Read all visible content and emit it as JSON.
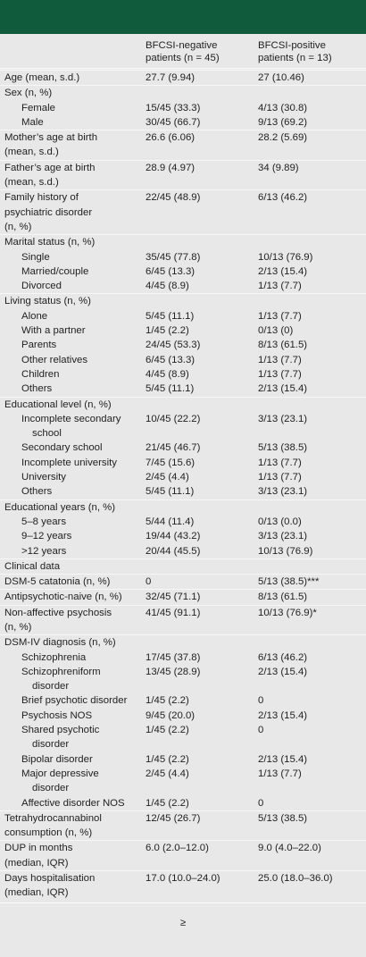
{
  "table": {
    "columns": [
      "BFCSI-negative\npatients (n = 45)",
      "BFCSI-positive\npatients (n = 13)"
    ],
    "rows": [
      {
        "label": "Age (mean, s.d.)",
        "level": 0,
        "negative": "27.7 (9.94)",
        "positive": "27 (10.46)"
      },
      {
        "label": "Sex (n, %)",
        "level": 0
      },
      {
        "label": "Female",
        "level": 1,
        "negative": "15/45 (33.3)",
        "positive": "4/13 (30.8)"
      },
      {
        "label": "Male",
        "level": 1,
        "negative": "30/45 (66.7)",
        "positive": "9/13 (69.2)"
      },
      {
        "label": "Mother’s age at birth\n(mean, s.d.)",
        "level": 0,
        "negative": "26.6 (6.06)",
        "positive": "28.2 (5.69)"
      },
      {
        "label": "Father’s age at birth\n(mean, s.d.)",
        "level": 0,
        "negative": "28.9 (4.97)",
        "positive": "34 (9.89)"
      },
      {
        "label": "Family history of\npsychiatric disorder\n(n, %)",
        "level": 0,
        "negative": "22/45 (48.9)",
        "positive": "6/13 (46.2)"
      },
      {
        "label": "Marital status (n, %)",
        "level": 0
      },
      {
        "label": "Single",
        "level": 1,
        "negative": "35/45 (77.8)",
        "positive": "10/13 (76.9)"
      },
      {
        "label": "Married/couple",
        "level": 1,
        "negative": "6/45 (13.3)",
        "positive": "2/13 (15.4)"
      },
      {
        "label": "Divorced",
        "level": 1,
        "negative": "4/45 (8.9)",
        "positive": "1/13 (7.7)"
      },
      {
        "label": "Living status (n, %)",
        "level": 0
      },
      {
        "label": "Alone",
        "level": 1,
        "negative": "5/45 (11.1)",
        "positive": "1/13 (7.7)"
      },
      {
        "label": "With a partner",
        "level": 1,
        "negative": "1/45 (2.2)",
        "positive": "0/13 (0)"
      },
      {
        "label": "Parents",
        "level": 1,
        "negative": "24/45 (53.3)",
        "positive": "8/13 (61.5)"
      },
      {
        "label": "Other relatives",
        "level": 1,
        "negative": "6/45 (13.3)",
        "positive": "1/13 (7.7)"
      },
      {
        "label": "Children",
        "level": 1,
        "negative": "4/45 (8.9)",
        "positive": "1/13 (7.7)"
      },
      {
        "label": "Others",
        "level": 1,
        "negative": "5/45 (11.1)",
        "positive": "2/13 (15.4)"
      },
      {
        "label": "Educational level (n, %)",
        "level": 0
      },
      {
        "label": "Incomplete secondary\nschool",
        "level": 1,
        "negative": "10/45 (22.2)",
        "positive": "3/13 (23.1)"
      },
      {
        "label": "Secondary school",
        "level": 1,
        "negative": "21/45 (46.7)",
        "positive": "5/13 (38.5)"
      },
      {
        "label": "Incomplete university",
        "level": 1,
        "negative": "7/45 (15.6)",
        "positive": "1/13 (7.7)"
      },
      {
        "label": "University",
        "level": 1,
        "negative": "2/45 (4.4)",
        "positive": "1/13 (7.7)"
      },
      {
        "label": "Others",
        "level": 1,
        "negative": "5/45 (11.1)",
        "positive": "3/13 (23.1)"
      },
      {
        "label": "Educational years (n, %)",
        "level": 0
      },
      {
        "label": "5–8 years",
        "level": 1,
        "negative": "5/44 (11.4)",
        "positive": "0/13 (0.0)"
      },
      {
        "label": "9–12 years",
        "level": 1,
        "negative": "19/44 (43.2)",
        "positive": "3/13 (23.1)"
      },
      {
        "label": ">12 years",
        "level": 1,
        "negative": "20/44 (45.5)",
        "positive": "10/13 (76.9)"
      },
      {
        "label": "Clinical data",
        "level": 0
      },
      {
        "label": "DSM-5 catatonia (n, %)",
        "level": 0,
        "negative": "0",
        "positive": "5/13 (38.5)***"
      },
      {
        "label": "Antipsychotic-naive (n, %)",
        "level": 0,
        "negative": "32/45 (71.1)",
        "positive": "8/13 (61.5)"
      },
      {
        "label": "Non-affective psychosis\n(n, %)",
        "level": 0,
        "negative": "41/45 (91.1)",
        "positive": "10/13 (76.9)*"
      },
      {
        "label": "DSM-IV diagnosis (n, %)",
        "level": 0
      },
      {
        "label": "Schizophrenia",
        "level": 1,
        "negative": "17/45 (37.8)",
        "positive": "6/13 (46.2)"
      },
      {
        "label": "Schizophreniform\ndisorder",
        "level": 1,
        "negative": "13/45 (28.9)",
        "positive": "2/13 (15.4)"
      },
      {
        "label": "Brief psychotic disorder",
        "level": 1,
        "negative": "1/45 (2.2)",
        "positive": "0"
      },
      {
        "label": "Psychosis NOS",
        "level": 1,
        "negative": "9/45 (20.0)",
        "positive": "2/13 (15.4)"
      },
      {
        "label": "Shared psychotic\ndisorder",
        "level": 1,
        "negative": "1/45 (2.2)",
        "positive": "0"
      },
      {
        "label": "Bipolar disorder",
        "level": 1,
        "negative": "1/45 (2.2)",
        "positive": "2/13 (15.4)"
      },
      {
        "label": "Major depressive\ndisorder",
        "level": 1,
        "negative": "2/45 (4.4)",
        "positive": "1/13 (7.7)"
      },
      {
        "label": "Affective disorder NOS",
        "level": 1,
        "negative": "1/45 (2.2)",
        "positive": "0"
      },
      {
        "label": "Tetrahydrocannabinol\nconsumption (n, %)",
        "level": 0,
        "negative": "12/45 (26.7)",
        "positive": "5/13 (38.5)"
      },
      {
        "label": "DUP in months\n(median, IQR)",
        "level": 0,
        "negative": "6.0 (2.0–12.0)",
        "positive": "9.0 (4.0–22.0)"
      },
      {
        "label": "Days hospitalisation\n(median, IQR)",
        "level": 0,
        "negative": "17.0 (10.0–24.0)",
        "positive": "25.0 (18.0–36.0)"
      }
    ],
    "footer": "≥"
  }
}
